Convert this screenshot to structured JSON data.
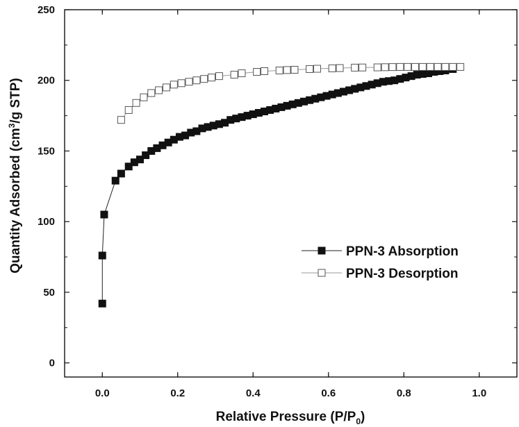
{
  "chart_data": {
    "type": "scatter",
    "xlabel": "Relative Pressure (P/P",
    "xlabel_sub": "0",
    "xlabel_end": ")",
    "ylabel": "Quantity Adsorbed (cm",
    "ylabel_sup": "3",
    "ylabel_end": "/g STP)",
    "xlim": [
      -0.1,
      1.1
    ],
    "ylim": [
      -10,
      250
    ],
    "xticks": [
      0.0,
      0.2,
      0.4,
      0.6,
      0.8,
      1.0
    ],
    "xtick_labels": [
      "0.0",
      "0.2",
      "0.4",
      "0.6",
      "0.8",
      "1.0"
    ],
    "yticks": [
      0,
      50,
      100,
      150,
      200,
      250
    ],
    "ytick_labels": [
      "0",
      "50",
      "100",
      "150",
      "200",
      "250"
    ],
    "grid": false,
    "legend_position": "center-right",
    "series": [
      {
        "name": "PPN-3 Absorption",
        "marker": "filled-square",
        "color": "#111111",
        "x": [
          0.0,
          0.0,
          0.005,
          0.035,
          0.05,
          0.07,
          0.085,
          0.1,
          0.115,
          0.13,
          0.145,
          0.16,
          0.175,
          0.19,
          0.205,
          0.22,
          0.235,
          0.25,
          0.265,
          0.28,
          0.295,
          0.31,
          0.325,
          0.34,
          0.355,
          0.37,
          0.385,
          0.4,
          0.415,
          0.43,
          0.445,
          0.46,
          0.475,
          0.49,
          0.505,
          0.52,
          0.535,
          0.55,
          0.565,
          0.58,
          0.595,
          0.61,
          0.625,
          0.64,
          0.655,
          0.67,
          0.685,
          0.7,
          0.715,
          0.73,
          0.745,
          0.76,
          0.775,
          0.79,
          0.805,
          0.82,
          0.835,
          0.85,
          0.865,
          0.88,
          0.895,
          0.91,
          0.93
        ],
        "y": [
          42,
          76,
          105,
          129,
          134,
          139,
          142,
          144,
          147,
          150,
          152,
          154,
          156,
          158,
          160,
          161,
          163,
          164,
          166,
          167,
          168,
          169,
          170,
          172,
          173,
          174,
          175,
          176,
          177,
          178,
          179,
          180,
          181,
          182,
          183,
          184,
          185,
          186,
          187,
          188,
          189,
          190,
          191,
          192,
          193,
          194,
          195,
          196,
          197,
          198,
          199,
          199.5,
          200,
          201,
          202,
          203,
          204,
          204.5,
          205,
          206,
          206.5,
          207,
          208
        ]
      },
      {
        "name": "PPN-3 Desorption",
        "marker": "open-square",
        "color": "#111111",
        "x": [
          0.05,
          0.07,
          0.09,
          0.11,
          0.13,
          0.15,
          0.17,
          0.19,
          0.21,
          0.23,
          0.25,
          0.27,
          0.29,
          0.31,
          0.35,
          0.37,
          0.41,
          0.43,
          0.47,
          0.49,
          0.51,
          0.55,
          0.57,
          0.61,
          0.63,
          0.67,
          0.69,
          0.73,
          0.75,
          0.77,
          0.79,
          0.81,
          0.83,
          0.85,
          0.87,
          0.89,
          0.91,
          0.93,
          0.95
        ],
        "y": [
          172,
          179,
          184,
          188,
          191,
          193,
          195,
          197,
          198,
          199,
          200,
          201,
          202,
          203,
          204,
          205,
          206,
          206.5,
          207,
          207.3,
          207.5,
          208,
          208.2,
          208.5,
          208.7,
          209,
          209.1,
          209.2,
          209.3,
          209.4,
          209.5,
          209.5,
          209.5,
          209.5,
          209.5,
          209.5,
          209.5,
          209.5,
          209.5
        ]
      }
    ]
  }
}
